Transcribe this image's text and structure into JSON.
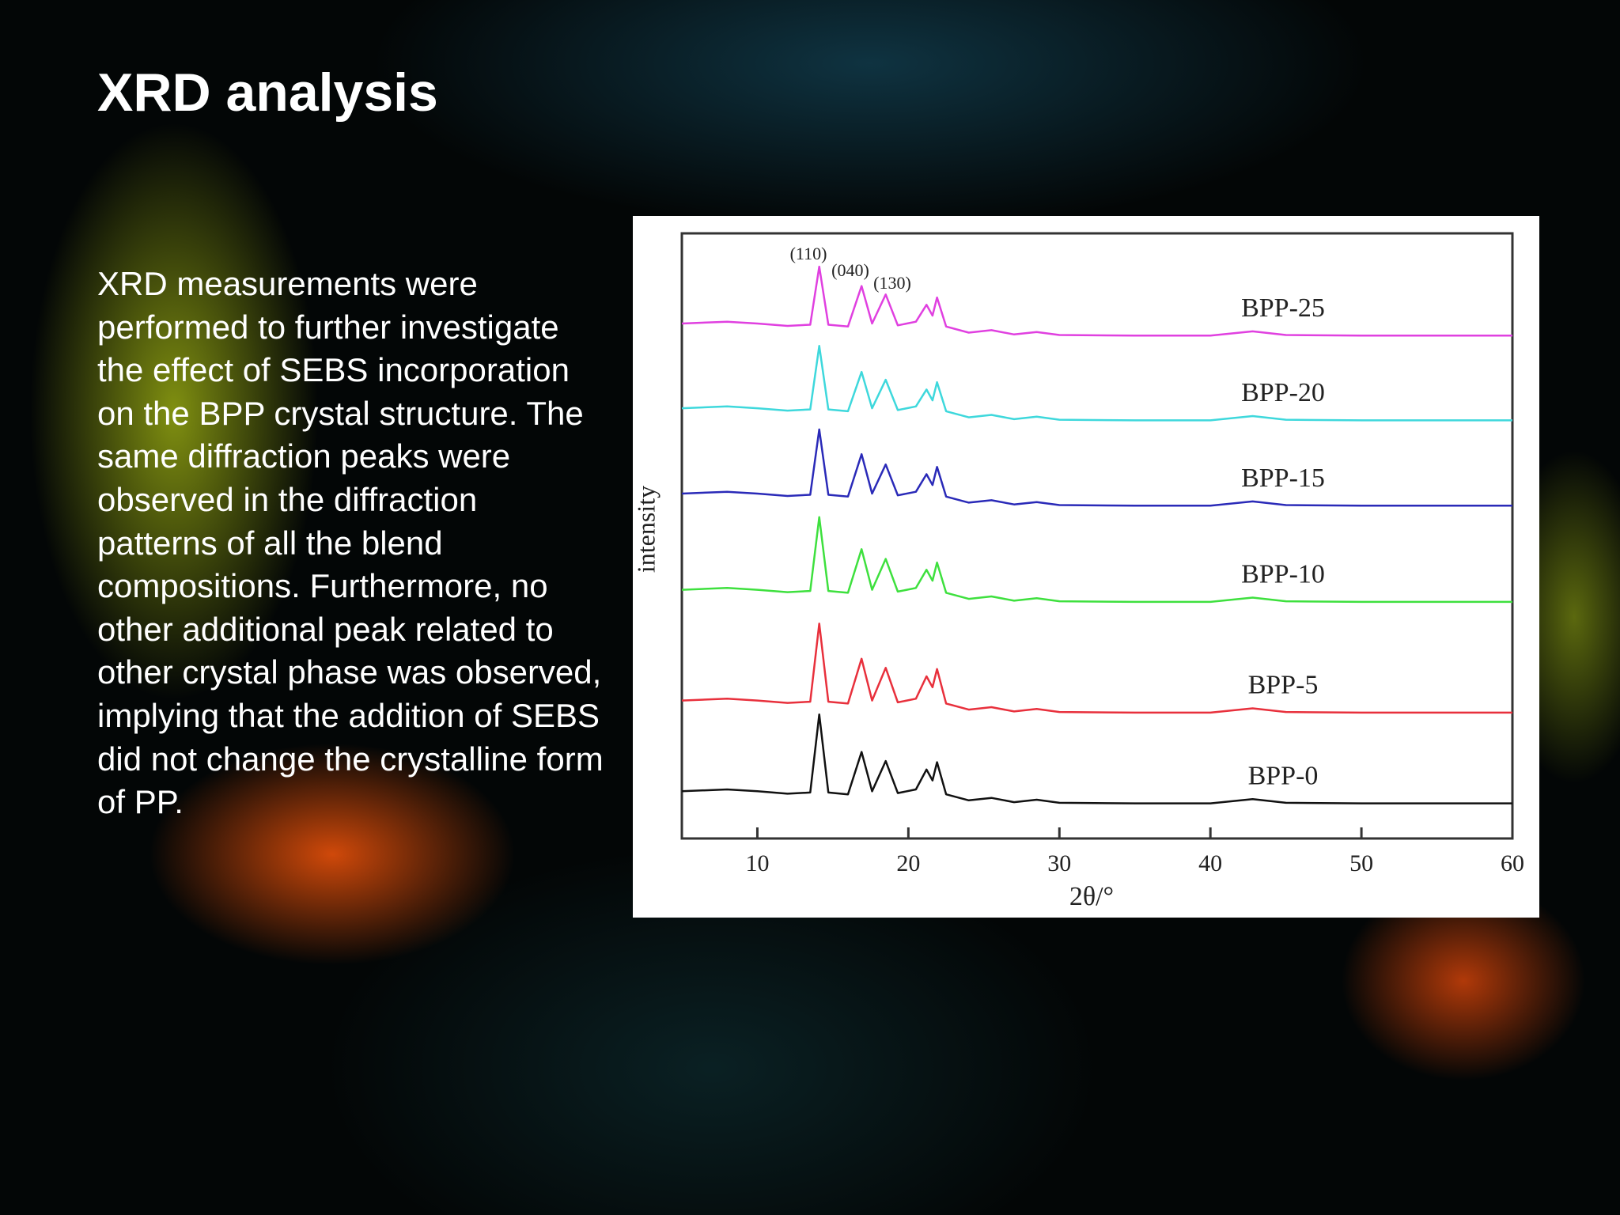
{
  "title": "XRD analysis",
  "body": "XRD measurements were performed to further investigate the effect of SEBS incorporation on the BPP crystal structure. The same diffraction peaks were observed in the diffraction patterns of all the blend compositions. Furthermore, no other additional peak related to other crystal phase was observed, implying that the addition of SEBS did not change the crystalline form of PP.",
  "chart_data": {
    "type": "line",
    "x_label": "2θ/°",
    "y_label": "intensity",
    "annotations": [
      "(110)",
      "(040)",
      "(130)"
    ],
    "xlim": [
      5,
      60
    ],
    "xticks": [
      10,
      20,
      30,
      40,
      50,
      60
    ],
    "ylim": [
      0,
      100
    ],
    "x": [
      5,
      8,
      10,
      12,
      13.5,
      14.1,
      14.7,
      16,
      16.9,
      17.6,
      18.5,
      19.3,
      20.5,
      21.2,
      21.6,
      21.9,
      22.5,
      24,
      25.5,
      27,
      28.5,
      30,
      35,
      40,
      42.8,
      45,
      50,
      55,
      60
    ],
    "series": [
      {
        "name": "BPP-25",
        "color": "#e040e0",
        "values": [
          85.1,
          85.4,
          85.1,
          84.7,
          84.9,
          94.5,
          84.9,
          84.6,
          91.3,
          85.1,
          89.9,
          84.8,
          85.4,
          88.2,
          86.4,
          89.4,
          84.6,
          83.6,
          84,
          83.3,
          83.7,
          83.2,
          83.1,
          83.1,
          83.8,
          83.2,
          83.1,
          83.1,
          83.1
        ]
      },
      {
        "name": "BPP-20",
        "color": "#3ed8dc",
        "values": [
          71.1,
          71.4,
          71.1,
          70.7,
          70.9,
          81.4,
          70.9,
          70.6,
          77.1,
          71.1,
          75.8,
          70.8,
          71.4,
          74.2,
          72.4,
          75.4,
          70.6,
          69.6,
          70,
          69.3,
          69.7,
          69.2,
          69.1,
          69.1,
          69.8,
          69.2,
          69.1,
          69.1,
          69.1
        ]
      },
      {
        "name": "BPP-15",
        "color": "#2a2ab8",
        "values": [
          57,
          57.3,
          57,
          56.6,
          56.8,
          67.6,
          56.8,
          56.5,
          63.5,
          57,
          61.8,
          56.7,
          57.3,
          60.2,
          58.4,
          61.4,
          56.5,
          55.5,
          55.9,
          55.2,
          55.6,
          55.1,
          55,
          55,
          55.7,
          55.1,
          55,
          55,
          55
        ]
      },
      {
        "name": "BPP-10",
        "color": "#3ee03e",
        "values": [
          41.1,
          41.4,
          41.1,
          40.7,
          40.9,
          53.1,
          40.9,
          40.6,
          47.8,
          41.1,
          46.2,
          40.8,
          41.4,
          44.4,
          42.6,
          45.6,
          40.6,
          39.6,
          40,
          39.3,
          39.7,
          39.2,
          39.1,
          39.1,
          39.8,
          39.2,
          39.1,
          39.1,
          39.1
        ]
      },
      {
        "name": "BPP-5",
        "color": "#e8303c",
        "values": [
          22.8,
          23.1,
          22.8,
          22.4,
          22.6,
          35.5,
          22.6,
          22.3,
          29.7,
          22.8,
          28.2,
          22.5,
          23.1,
          26.8,
          25,
          28,
          22.3,
          21.3,
          21.7,
          21,
          21.4,
          20.9,
          20.8,
          20.8,
          21.5,
          20.9,
          20.8,
          20.8,
          20.8
        ]
      },
      {
        "name": "BPP-0",
        "color": "#111111",
        "values": [
          7.8,
          8.1,
          7.8,
          7.4,
          7.6,
          20.5,
          7.6,
          7.3,
          14.3,
          7.8,
          12.8,
          7.5,
          8.1,
          11.4,
          9.6,
          12.6,
          7.3,
          6.3,
          6.7,
          6,
          6.4,
          5.9,
          5.8,
          5.8,
          6.5,
          5.9,
          5.8,
          5.8,
          5.8
        ]
      }
    ]
  }
}
